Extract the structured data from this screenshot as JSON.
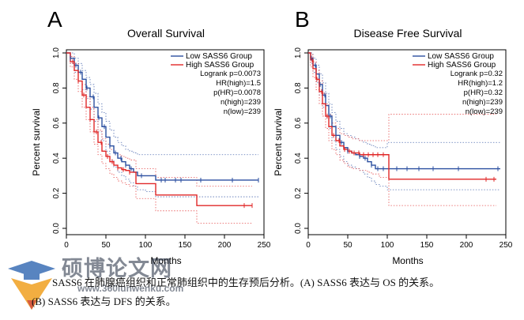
{
  "caption": {
    "line1": "SASS6 在肺腺癌组织和正常肺组织中的生存预后分析。(A) SASS6 表达与 OS 的关系。",
    "line2": "(B) SASS6 表达与 DFS 的关系。"
  },
  "watermark": {
    "text": "硕博论文网",
    "url": "www.360lunwenku.com"
  },
  "colors": {
    "low": "#2b4fa0",
    "high": "#e02828"
  },
  "chart_data": [
    {
      "type": "line",
      "panel_label": "A",
      "title": "Overall Survival",
      "xlabel": "Months",
      "ylabel": "Percent survival",
      "xlim": [
        0,
        250
      ],
      "ylim": [
        0,
        1.0
      ],
      "xticks": [
        "0",
        "50",
        "100",
        "150",
        "200",
        "250"
      ],
      "yticks": [
        "0.0",
        "0.2",
        "0.4",
        "0.6",
        "0.8",
        "1.0"
      ],
      "legend": [
        "Low SASS6 Group",
        "High SASS6 Group"
      ],
      "stats": [
        "Logrank p=0.0073",
        "HR(high)=1.5",
        "p(HR)=0.0078",
        "n(high)=239",
        "n(low)=239"
      ],
      "series": [
        {
          "name": "Low SASS6 Group",
          "color": "#2b4fa0",
          "x": [
            0,
            5,
            10,
            15,
            20,
            25,
            30,
            35,
            40,
            45,
            50,
            55,
            60,
            65,
            70,
            75,
            80,
            85,
            90,
            100,
            113,
            150,
            200,
            243
          ],
          "y": [
            1.0,
            0.97,
            0.93,
            0.89,
            0.85,
            0.8,
            0.75,
            0.69,
            0.63,
            0.58,
            0.52,
            0.47,
            0.43,
            0.4,
            0.38,
            0.36,
            0.34,
            0.32,
            0.3,
            0.3,
            0.275,
            0.275,
            0.275,
            0.275
          ],
          "censor_x": [
            5,
            12,
            18,
            26,
            34,
            41,
            48,
            55,
            62,
            69,
            75,
            82,
            95,
            120,
            125,
            138,
            145,
            170,
            210,
            243
          ],
          "upper": [
            1.0,
            1.0,
            0.97,
            0.94,
            0.9,
            0.86,
            0.82,
            0.77,
            0.71,
            0.66,
            0.61,
            0.56,
            0.52,
            0.49,
            0.47,
            0.45,
            0.44,
            0.43,
            0.42,
            0.42,
            0.42,
            0.42,
            0.42,
            0.42
          ],
          "lower": [
            1.0,
            0.94,
            0.89,
            0.84,
            0.79,
            0.74,
            0.68,
            0.61,
            0.55,
            0.5,
            0.44,
            0.39,
            0.35,
            0.32,
            0.3,
            0.28,
            0.26,
            0.24,
            0.22,
            0.21,
            0.18,
            0.18,
            0.18,
            0.18
          ]
        },
        {
          "name": "High SASS6 Group",
          "color": "#e02828",
          "x": [
            0,
            5,
            10,
            15,
            20,
            25,
            30,
            35,
            40,
            45,
            50,
            55,
            60,
            65,
            70,
            75,
            80,
            88,
            113,
            140,
            165,
            200,
            235
          ],
          "y": [
            1.0,
            0.95,
            0.9,
            0.84,
            0.76,
            0.69,
            0.62,
            0.55,
            0.49,
            0.44,
            0.41,
            0.38,
            0.36,
            0.345,
            0.335,
            0.33,
            0.32,
            0.255,
            0.19,
            0.19,
            0.13,
            0.13,
            0.13
          ],
          "censor_x": [
            8,
            15,
            22,
            30,
            38,
            44,
            52,
            58,
            65,
            72,
            80,
            225,
            235
          ],
          "upper": [
            1.0,
            0.98,
            0.94,
            0.89,
            0.82,
            0.75,
            0.69,
            0.62,
            0.56,
            0.51,
            0.48,
            0.45,
            0.43,
            0.42,
            0.41,
            0.4,
            0.39,
            0.34,
            0.29,
            0.29,
            0.24,
            0.24,
            0.24
          ],
          "lower": [
            1.0,
            0.92,
            0.85,
            0.78,
            0.69,
            0.62,
            0.55,
            0.48,
            0.42,
            0.37,
            0.34,
            0.31,
            0.29,
            0.27,
            0.26,
            0.25,
            0.24,
            0.17,
            0.1,
            0.1,
            0.03,
            0.03,
            0.03
          ]
        }
      ]
    },
    {
      "type": "line",
      "panel_label": "B",
      "title": "Disease Free Survival",
      "xlabel": "Months",
      "ylabel": "Percent survival",
      "xlim": [
        0,
        250
      ],
      "ylim": [
        0,
        1.0
      ],
      "xticks": [
        "0",
        "50",
        "100",
        "150",
        "200",
        "250"
      ],
      "yticks": [
        "0.0",
        "0.2",
        "0.4",
        "0.6",
        "0.8",
        "1.0"
      ],
      "legend": [
        "Low SASS6 Group",
        "High SASS6 Group"
      ],
      "stats": [
        "Logrank p=0.32",
        "HR(high)=1.2",
        "p(HR)=0.32",
        "n(high)=239",
        "n(low)=239"
      ],
      "series": [
        {
          "name": "Low SASS6 Group",
          "color": "#2b4fa0",
          "x": [
            0,
            3,
            6,
            10,
            14,
            18,
            22,
            26,
            30,
            35,
            40,
            45,
            50,
            55,
            60,
            65,
            70,
            75,
            80,
            85,
            90,
            100,
            150,
            200,
            243
          ],
          "y": [
            1.0,
            0.97,
            0.93,
            0.88,
            0.82,
            0.76,
            0.7,
            0.64,
            0.58,
            0.53,
            0.49,
            0.46,
            0.44,
            0.43,
            0.42,
            0.41,
            0.4,
            0.38,
            0.36,
            0.34,
            0.34,
            0.34,
            0.34,
            0.34,
            0.34
          ],
          "censor_x": [
            4,
            9,
            15,
            21,
            28,
            35,
            42,
            50,
            58,
            65,
            72,
            80,
            88,
            95,
            112,
            125,
            140,
            158,
            190,
            240
          ],
          "upper": [
            1.0,
            1.0,
            0.97,
            0.93,
            0.88,
            0.83,
            0.77,
            0.71,
            0.66,
            0.61,
            0.57,
            0.54,
            0.53,
            0.52,
            0.51,
            0.5,
            0.49,
            0.48,
            0.47,
            0.46,
            0.46,
            0.49,
            0.49,
            0.49,
            0.49
          ],
          "lower": [
            1.0,
            0.94,
            0.89,
            0.83,
            0.76,
            0.69,
            0.63,
            0.57,
            0.5,
            0.45,
            0.41,
            0.38,
            0.36,
            0.35,
            0.34,
            0.33,
            0.31,
            0.29,
            0.27,
            0.25,
            0.24,
            0.22,
            0.22,
            0.22,
            0.22
          ]
        },
        {
          "name": "High SASS6 Group",
          "color": "#e02828",
          "x": [
            0,
            3,
            6,
            10,
            14,
            18,
            22,
            26,
            30,
            35,
            40,
            45,
            50,
            55,
            60,
            65,
            70,
            75,
            80,
            90,
            102,
            150,
            200,
            238
          ],
          "y": [
            1.0,
            0.96,
            0.91,
            0.85,
            0.78,
            0.71,
            0.64,
            0.58,
            0.53,
            0.5,
            0.47,
            0.45,
            0.44,
            0.43,
            0.43,
            0.42,
            0.42,
            0.42,
            0.42,
            0.42,
            0.28,
            0.28,
            0.28,
            0.28
          ],
          "censor_x": [
            5,
            11,
            17,
            24,
            32,
            39,
            46,
            52,
            58,
            64,
            70,
            76,
            82,
            88,
            95,
            225,
            235
          ],
          "upper": [
            1.0,
            0.99,
            0.95,
            0.9,
            0.84,
            0.77,
            0.71,
            0.65,
            0.6,
            0.57,
            0.54,
            0.53,
            0.52,
            0.51,
            0.51,
            0.5,
            0.5,
            0.5,
            0.5,
            0.5,
            0.65,
            0.65,
            0.65,
            0.65
          ],
          "lower": [
            1.0,
            0.92,
            0.86,
            0.79,
            0.71,
            0.64,
            0.57,
            0.5,
            0.45,
            0.42,
            0.39,
            0.37,
            0.35,
            0.34,
            0.34,
            0.33,
            0.33,
            0.32,
            0.31,
            0.29,
            0.13,
            0.13,
            0.13,
            0.13
          ]
        }
      ]
    }
  ]
}
